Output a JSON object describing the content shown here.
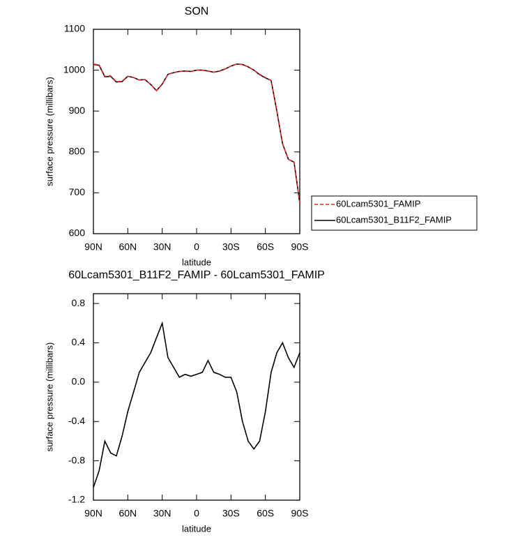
{
  "chart_data": [
    {
      "type": "line",
      "title": "SON",
      "x_label": "latitude",
      "y_label": "surface pressure (millibars)",
      "x": [
        90,
        85,
        80,
        75,
        70,
        65,
        60,
        55,
        50,
        45,
        40,
        35,
        30,
        25,
        20,
        15,
        10,
        5,
        0,
        -5,
        -10,
        -15,
        -20,
        -25,
        -30,
        -35,
        -40,
        -45,
        -50,
        -55,
        -60,
        -65,
        -70,
        -75,
        -80,
        -85,
        -90
      ],
      "xlim": [
        90,
        -90
      ],
      "xticks": [
        {
          "value": 90,
          "label": "90N"
        },
        {
          "value": 60,
          "label": "60N"
        },
        {
          "value": 30,
          "label": "30N"
        },
        0,
        {
          "value": -30,
          "label": "30S"
        },
        {
          "value": -60,
          "label": "60S"
        },
        {
          "value": -90,
          "label": "90S"
        }
      ],
      "ylim": [
        600,
        1100
      ],
      "yticks": [
        600,
        700,
        800,
        900,
        1000,
        1100
      ],
      "legend": "right",
      "series": [
        {
          "name": "60Lcam5301_FAMIP",
          "color": "#e8262a",
          "dash": true,
          "values": [
            1015,
            1013,
            985,
            986,
            972,
            973,
            985,
            982,
            976,
            977,
            965,
            950,
            965,
            990,
            994,
            997,
            998,
            997,
            1000,
            1000,
            998,
            995,
            998,
            1003,
            1010,
            1015,
            1014,
            1008,
            1000,
            990,
            982,
            975,
            900,
            820,
            782,
            775,
            675
          ]
        },
        {
          "name": "60Lcam5301_B11F2_FAMIP",
          "color": "#000000",
          "dash": false,
          "values": [
            1014,
            1012,
            984,
            985,
            971,
            972,
            985,
            982,
            976,
            977,
            965,
            950,
            966,
            990,
            994,
            997,
            998,
            997,
            1000,
            1000,
            998,
            995,
            998,
            1003,
            1010,
            1015,
            1014,
            1008,
            1000,
            989,
            981,
            975,
            900,
            820,
            782,
            775,
            675
          ]
        }
      ]
    },
    {
      "type": "line",
      "title": "60Lcam5301_B11F2_FAMIP - 60Lcam5301_FAMIP",
      "x_label": "latitude",
      "y_label": "surface pressure (millibars)",
      "x": [
        90,
        85,
        80,
        75,
        70,
        65,
        60,
        55,
        50,
        45,
        40,
        35,
        30,
        25,
        20,
        15,
        10,
        5,
        0,
        -5,
        -10,
        -15,
        -20,
        -25,
        -30,
        -35,
        -40,
        -45,
        -50,
        -55,
        -60,
        -65,
        -70,
        -75,
        -80,
        -85,
        -90
      ],
      "xlim": [
        90,
        -90
      ],
      "xticks": [
        {
          "value": 90,
          "label": "90N"
        },
        {
          "value": 60,
          "label": "60N"
        },
        {
          "value": 30,
          "label": "30N"
        },
        0,
        {
          "value": -30,
          "label": "30S"
        },
        {
          "value": -60,
          "label": "60S"
        },
        {
          "value": -90,
          "label": "90S"
        }
      ],
      "ylim": [
        -1.2,
        0.9
      ],
      "yticks": [
        -1.2,
        -0.8,
        -0.4,
        {
          "value": 0,
          "label": "0.0"
        },
        0.4,
        0.8
      ],
      "series": [
        {
          "color": "#000000",
          "dash": false,
          "values": [
            -1.07,
            -0.9,
            -0.6,
            -0.72,
            -0.75,
            -0.55,
            -0.3,
            -0.1,
            0.1,
            0.2,
            0.3,
            0.45,
            0.6,
            0.25,
            0.15,
            0.05,
            0.08,
            0.06,
            0.08,
            0.1,
            0.22,
            0.1,
            0.08,
            0.05,
            0.05,
            -0.1,
            -0.4,
            -0.6,
            -0.68,
            -0.6,
            -0.3,
            0.1,
            0.3,
            0.4,
            0.25,
            0.15,
            0.3
          ]
        }
      ]
    }
  ]
}
